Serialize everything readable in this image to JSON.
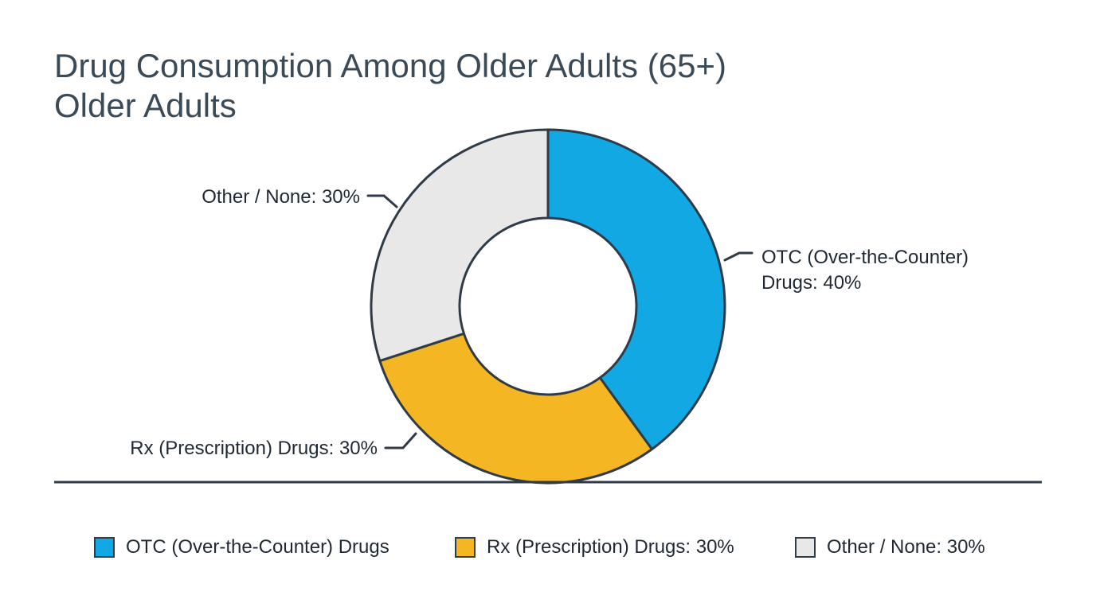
{
  "chart_data": {
    "type": "pie",
    "variant": "donut",
    "title": "Drug Consumption Among Older Adults (65+)",
    "subtitle": "Older Adults",
    "slices": [
      {
        "label": "OTC (Over-the-Counter) Drugs",
        "callout": [
          "OTC (Over-the-Counter)",
          "Drugs: 40%"
        ],
        "value": 40,
        "color": "#12a8e3"
      },
      {
        "label": "Rx (Prescription) Drugs: 30%",
        "callout": [
          "Rx (Prescription) Drugs: 30%"
        ],
        "value": 30,
        "color": "#f5b623"
      },
      {
        "label": "Other / None: 30%",
        "callout": [
          "Other / None: 30%"
        ],
        "value": 30,
        "color": "#e8e8e8"
      }
    ],
    "legend": {
      "position": "bottom",
      "items": [
        {
          "label": "OTC (Over-the-Counter) Drugs",
          "color": "#12a8e3"
        },
        {
          "label": "Rx (Prescription) Drugs: 30%",
          "color": "#f5b623"
        },
        {
          "label": "Other / None: 30%",
          "color": "#e8e8e8"
        }
      ]
    },
    "stroke_color": "#2f3b46"
  }
}
